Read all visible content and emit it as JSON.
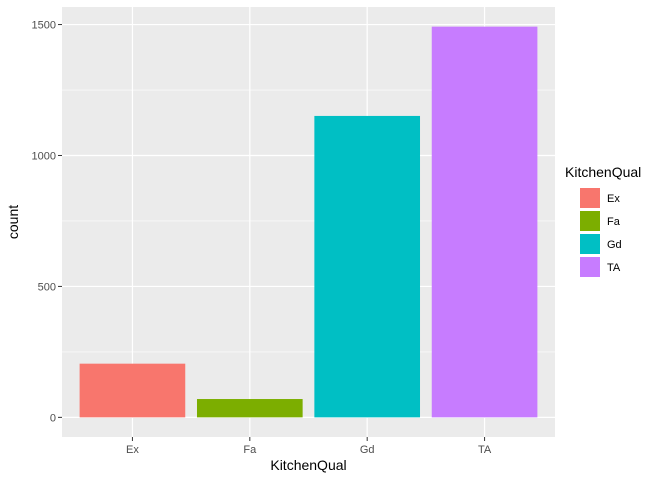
{
  "chart_data": {
    "type": "bar",
    "categories": [
      "Ex",
      "Fa",
      "Gd",
      "TA"
    ],
    "values": [
      205,
      70,
      1151,
      1492
    ],
    "colors": [
      "#F8766D",
      "#7CAE00",
      "#00BFC4",
      "#C77CFF"
    ],
    "xlabel": "KitchenQual",
    "ylabel": "count",
    "ylim": [
      -75,
      1567
    ],
    "yticks": [
      0,
      500,
      1000,
      1500
    ],
    "ytick_labels": [
      "0",
      "500",
      "1000",
      "1500"
    ],
    "panel_background": "#EBEBEB",
    "grid_color": "#FFFFFF",
    "grid": true,
    "legend": {
      "title": "KitchenQual",
      "placement": "right",
      "entries": [
        {
          "label": "Ex",
          "color": "#F8766D"
        },
        {
          "label": "Fa",
          "color": "#7CAE00"
        },
        {
          "label": "Gd",
          "color": "#00BFC4"
        },
        {
          "label": "TA",
          "color": "#C77CFF"
        }
      ]
    }
  }
}
